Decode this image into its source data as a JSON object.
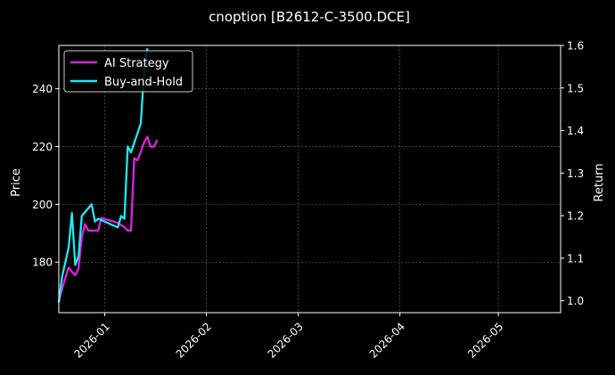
{
  "chart_data": {
    "type": "line",
    "title": "cnoption [B2612-C-3500.DCE]",
    "xlabel": "",
    "ylabel": "Price",
    "y2label": "Return",
    "x_axis": {
      "type": "date",
      "range": [
        "2025-12-18",
        "2026-05-20"
      ],
      "ticks": [
        {
          "date": "2026-01-01",
          "label": "2026-01"
        },
        {
          "date": "2026-02-01",
          "label": "2026-02"
        },
        {
          "date": "2026-03-01",
          "label": "2026-03"
        },
        {
          "date": "2026-04-01",
          "label": "2026-04"
        },
        {
          "date": "2026-05-01",
          "label": "2026-05"
        }
      ]
    },
    "y_left": {
      "range": [
        162.5,
        255
      ],
      "ticks": [
        {
          "v": 180,
          "label": "180"
        },
        {
          "v": 200,
          "label": "200"
        },
        {
          "v": 220,
          "label": "220"
        },
        {
          "v": 240,
          "label": "240"
        }
      ]
    },
    "y_right": {
      "range": [
        0.972,
        1.6
      ],
      "ticks": [
        {
          "v": 1.0,
          "label": "1.0"
        },
        {
          "v": 1.1,
          "label": "1.1"
        },
        {
          "v": 1.2,
          "label": "1.2"
        },
        {
          "v": 1.3,
          "label": "1.3"
        },
        {
          "v": 1.4,
          "label": "1.4"
        },
        {
          "v": 1.5,
          "label": "1.5"
        },
        {
          "v": 1.6,
          "label": "1.6"
        }
      ]
    },
    "grid": true,
    "legend_position": "top-left",
    "series": [
      {
        "name": "AI Strategy",
        "color": "#e020e0",
        "axis": "right",
        "points": [
          [
            "2025-12-18",
            1.0
          ],
          [
            "2025-12-20",
            1.055
          ],
          [
            "2025-12-21",
            1.078
          ],
          [
            "2025-12-22",
            1.068
          ],
          [
            "2025-12-23",
            1.06
          ],
          [
            "2025-12-24",
            1.075
          ],
          [
            "2025-12-25",
            1.15
          ],
          [
            "2025-12-26",
            1.18
          ],
          [
            "2025-12-27",
            1.165
          ],
          [
            "2025-12-30",
            1.165
          ],
          [
            "2025-12-31",
            1.195
          ],
          [
            "2026-01-01",
            1.192
          ],
          [
            "2026-01-02",
            1.19
          ],
          [
            "2026-01-05",
            1.183
          ],
          [
            "2026-01-07",
            1.173
          ],
          [
            "2026-01-08",
            1.165
          ],
          [
            "2026-01-09",
            1.165
          ],
          [
            "2026-01-10",
            1.335
          ],
          [
            "2026-01-11",
            1.33
          ],
          [
            "2026-01-12",
            1.35
          ],
          [
            "2026-01-13",
            1.372
          ],
          [
            "2026-01-14",
            1.385
          ],
          [
            "2026-01-15",
            1.362
          ],
          [
            "2026-01-16",
            1.362
          ],
          [
            "2026-01-17",
            1.378
          ]
        ]
      },
      {
        "name": "Buy-and-Hold",
        "color": "#20e8f0",
        "axis": "left",
        "points": [
          [
            "2025-12-18",
            166
          ],
          [
            "2025-12-19",
            175
          ],
          [
            "2025-12-21",
            185
          ],
          [
            "2025-12-22",
            197
          ],
          [
            "2025-12-23",
            179
          ],
          [
            "2025-12-24",
            182
          ],
          [
            "2025-12-25",
            196
          ],
          [
            "2025-12-28",
            200
          ],
          [
            "2025-12-29",
            194
          ],
          [
            "2025-12-30",
            195
          ],
          [
            "2026-01-05",
            192
          ],
          [
            "2026-01-06",
            196
          ],
          [
            "2026-01-07",
            195
          ],
          [
            "2026-01-08",
            220
          ],
          [
            "2026-01-09",
            218
          ],
          [
            "2026-01-12",
            228
          ],
          [
            "2026-01-13",
            246
          ],
          [
            "2026-01-14",
            254
          ]
        ]
      }
    ]
  }
}
